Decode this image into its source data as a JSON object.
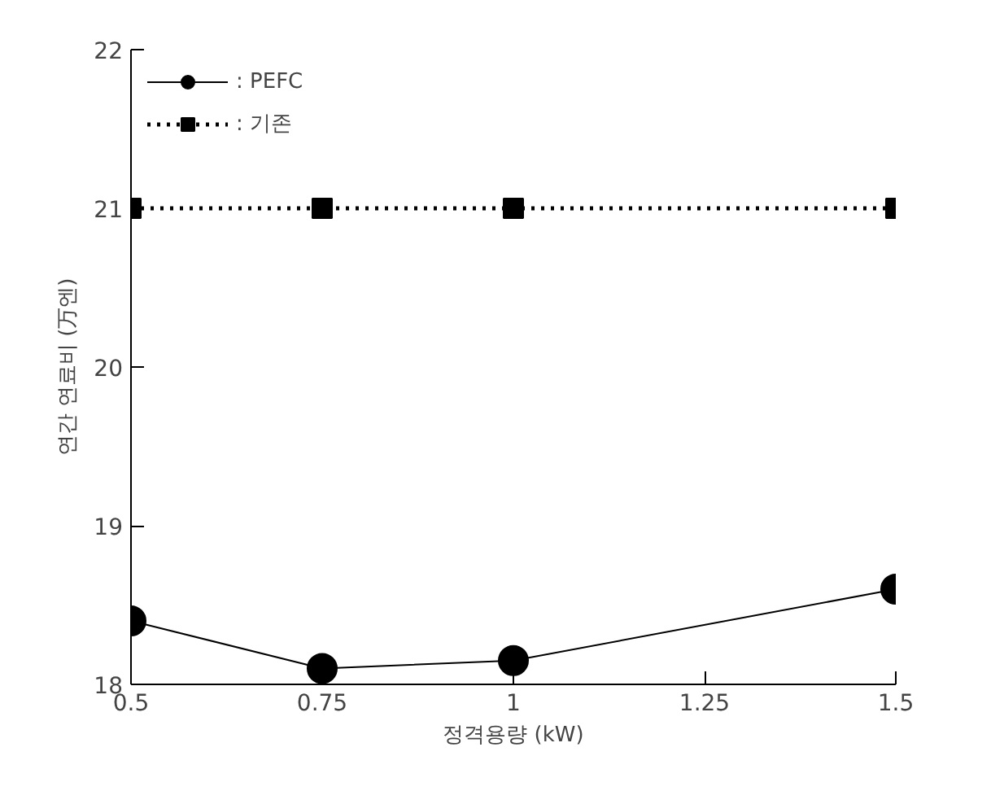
{
  "chart_data": {
    "type": "line",
    "xlabel": "정격용량 (kW)",
    "ylabel": "연간 연료비 (万엔)",
    "x": [
      0.5,
      0.75,
      1,
      1.5
    ],
    "xlim": [
      0.5,
      1.5
    ],
    "xticks": [
      0.5,
      0.75,
      1,
      1.25,
      1.5
    ],
    "ylim": [
      18,
      22
    ],
    "yticks": [
      18,
      19,
      20,
      21,
      22
    ],
    "grid": false,
    "legend": "top left",
    "series": [
      {
        "name": ": PEFC",
        "color": "#000000",
        "values": [
          18.4,
          18.1,
          18.15,
          18.6
        ],
        "marker": "circle",
        "line_style": "solid"
      },
      {
        "name": ": 기존",
        "color": "#000000",
        "values": [
          21,
          21,
          21,
          21
        ],
        "marker": "square",
        "line_style": "dotted"
      }
    ]
  }
}
